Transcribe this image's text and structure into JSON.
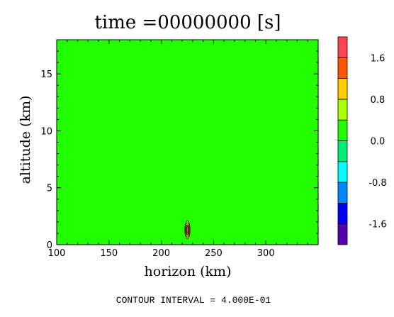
{
  "chart_data": {
    "type": "heatmap",
    "title": "time =00000000 [s]",
    "xlabel": "horizon (km)",
    "ylabel": "altitude (km)",
    "xlim": [
      100,
      350
    ],
    "ylim": [
      0,
      18
    ],
    "xticks": [
      "100",
      "150",
      "200",
      "250",
      "300"
    ],
    "xtick_values": [
      100,
      150,
      200,
      250,
      300
    ],
    "yticks": [
      "0",
      "5",
      "10",
      "15"
    ],
    "ytick_values": [
      0,
      5,
      10,
      15
    ],
    "field_background_value": 0.0,
    "anomaly": {
      "x_km": 225,
      "z_km": 1.3,
      "half_width_km": 2.5,
      "half_height_km": 0.8,
      "peak_value": 1.6
    },
    "colorbar": {
      "levels": [
        {
          "color": "#5500aa"
        },
        {
          "color": "#0000ff"
        },
        {
          "color": "#0088ff"
        },
        {
          "color": "#00ffff"
        },
        {
          "color": "#00ee77"
        },
        {
          "color": "#22ff00"
        },
        {
          "color": "#aaff00"
        },
        {
          "color": "#ffcc00"
        },
        {
          "color": "#ff5500"
        },
        {
          "color": "#ff4455"
        }
      ],
      "tick_labels": [
        "-1.6",
        "-0.8",
        "0.0",
        "0.8",
        "1.6"
      ],
      "tick_values": [
        -1.6,
        -0.8,
        0.0,
        0.8,
        1.6
      ],
      "vmin": -2.0,
      "vmax": 2.0
    },
    "footer": "CONTOUR INTERVAL = 4.000E-01"
  }
}
